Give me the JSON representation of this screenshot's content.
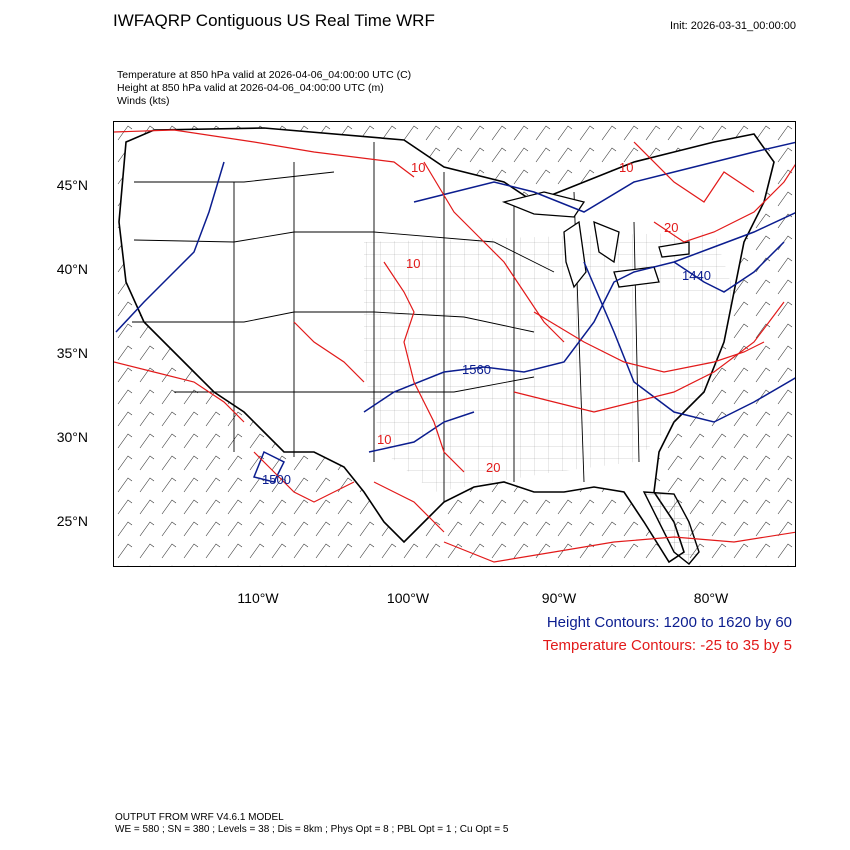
{
  "title": "IWFAQRP Contiguous US Real Time WRF",
  "init": "Init: 2026-03-31_00:00:00",
  "fields": [
    "Temperature at 850 hPa valid at 2026-04-06_04:00:00 UTC   (C)",
    "Height at 850 hPa valid at 2026-04-06_04:00:00 UTC   (m)",
    "Winds   (kts)"
  ],
  "lat_labels": [
    "45°N",
    "40°N",
    "35°N",
    "30°N",
    "25°N"
  ],
  "lon_labels": [
    "110°W",
    "100°W",
    "90°W",
    "80°W"
  ],
  "map_labels": {
    "temp_10_a": "10",
    "temp_10_b": "10",
    "temp_10_c": "10",
    "temp_10_d": "10",
    "temp_20": "20",
    "temp_20_b": "20",
    "height_1440": "1440",
    "height_1560": "1560",
    "height_1500": "1500"
  },
  "legend": {
    "height": "Height Contours: 1200 to 1620 by 60",
    "temperature": "Temperature Contours: -25 to 35 by 5"
  },
  "footer": [
    "OUTPUT FROM WRF V4.6.1 MODEL",
    "WE = 580 ; SN = 380 ; Levels = 38 ; Dis = 8km ; Phys Opt = 8 ; PBL Opt = 1 ; Cu Opt = 5"
  ],
  "colors": {
    "height_contours": "#0b1d8f",
    "temperature_contours": "#e21a1a",
    "boundaries": "#000000"
  }
}
